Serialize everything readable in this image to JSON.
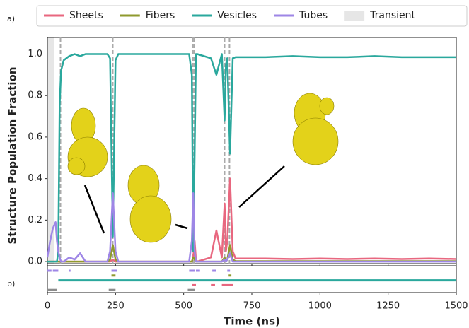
{
  "chart_data": {
    "type": "line",
    "panel_a_label": "a)",
    "panel_b_label": "b)",
    "xlabel": "Time (ns)",
    "ylabel": "Structure Population Fraction",
    "xlim": [
      0,
      1500
    ],
    "xticks": [
      0,
      250,
      500,
      750,
      1000,
      1250,
      1500
    ],
    "ylim": [
      -0.01,
      1.08
    ],
    "yticks": [
      0.0,
      0.2,
      0.4,
      0.6,
      0.8,
      1.0
    ],
    "x": [
      0,
      10,
      20,
      30,
      35,
      40,
      45,
      50,
      60,
      80,
      100,
      120,
      140,
      180,
      220,
      230,
      240,
      250,
      260,
      300,
      400,
      500,
      520,
      530,
      535,
      540,
      545,
      550,
      600,
      620,
      640,
      650,
      655,
      660,
      670,
      680,
      690,
      700,
      800,
      900,
      1000,
      1100,
      1200,
      1300,
      1400,
      1500
    ],
    "series": [
      {
        "name": "Sheets",
        "color": "#e8677f",
        "values": [
          0,
          0,
          0,
          0,
          0,
          0,
          0,
          0,
          0,
          0,
          0,
          0,
          0,
          0,
          0,
          0,
          0.01,
          0,
          0,
          0,
          0,
          0,
          0,
          0,
          0.02,
          0.1,
          0.01,
          0,
          0.02,
          0.15,
          0.02,
          0.28,
          0.05,
          0.1,
          0.4,
          0.05,
          0.015,
          0.015,
          0.015,
          0.012,
          0.015,
          0.012,
          0.015,
          0.012,
          0.015,
          0.012
        ]
      },
      {
        "name": "Fibers",
        "color": "#8f9a2e",
        "values": [
          0,
          0,
          0,
          0,
          0,
          0,
          0,
          0,
          0,
          0,
          0,
          0,
          0,
          0,
          0,
          0.01,
          0.08,
          0.01,
          0,
          0,
          0,
          0,
          0,
          0,
          0.02,
          0.01,
          0,
          0,
          0,
          0,
          0,
          0.02,
          0,
          0.01,
          0.08,
          0.01,
          0.002,
          0.002,
          0.002,
          0.002,
          0.002,
          0.002,
          0.002,
          0.002,
          0.002,
          0.002
        ]
      },
      {
        "name": "Vesicles",
        "color": "#2aa89d",
        "values": [
          0,
          0,
          0,
          0,
          0,
          0.05,
          0.75,
          0.92,
          0.97,
          0.99,
          1.0,
          0.99,
          1.0,
          1.0,
          1.0,
          0.98,
          0.12,
          0.97,
          1.0,
          1.0,
          1.0,
          1.0,
          1.0,
          0.9,
          0.05,
          0.5,
          1.0,
          1.0,
          0.98,
          0.9,
          1.0,
          0.68,
          0.95,
          0.98,
          0.52,
          0.98,
          0.985,
          0.985,
          0.985,
          0.99,
          0.985,
          0.985,
          0.99,
          0.985,
          0.985,
          0.985
        ]
      },
      {
        "name": "Tubes",
        "color": "#9e86e6",
        "values": [
          0.02,
          0.1,
          0.16,
          0.19,
          0.1,
          0.05,
          0.02,
          0,
          0,
          0.02,
          0.01,
          0.04,
          0,
          0,
          0,
          0.05,
          0.33,
          0.05,
          0,
          0,
          0,
          0,
          0,
          0.1,
          0.33,
          0.05,
          0,
          0,
          0,
          0,
          0,
          0.01,
          0,
          0.01,
          0.04,
          0,
          0,
          0,
          0,
          0,
          0,
          0,
          0,
          0,
          0,
          0
        ]
      }
    ],
    "transient_label": "Transient",
    "transient_color": "#e6e6e6",
    "transient_span": [
      0,
      25
    ],
    "vlines": [
      48,
      240,
      533,
      538,
      650,
      668
    ],
    "state_rows": [
      {
        "color": "#9e86e6",
        "intervals": [
          [
            0,
            15
          ],
          [
            20,
            40
          ],
          [
            80,
            85
          ],
          [
            235,
            255
          ],
          [
            520,
            540
          ],
          [
            545,
            560
          ],
          [
            605,
            620
          ],
          [
            660,
            670
          ]
        ]
      },
      {
        "color": "#8f9a2e",
        "intervals": [
          [
            235,
            250
          ],
          [
            665,
            675
          ]
        ]
      },
      {
        "color": "#2aa89d",
        "intervals": [
          [
            40,
            1500
          ]
        ]
      },
      {
        "color": "#e8677f",
        "intervals": [
          [
            530,
            545
          ],
          [
            600,
            615
          ],
          [
            640,
            680
          ]
        ]
      },
      {
        "color": "#8c8c8c",
        "intervals": [
          [
            0,
            35
          ],
          [
            225,
            250
          ],
          [
            515,
            540
          ]
        ]
      }
    ]
  }
}
